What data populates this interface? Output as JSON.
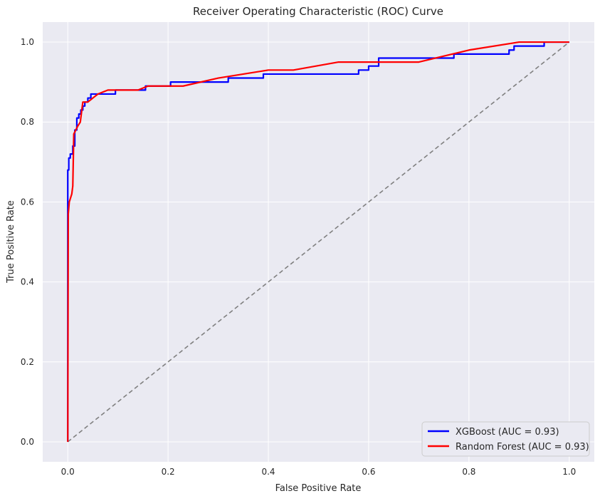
{
  "chart_data": {
    "type": "line",
    "title": "Receiver Operating Characteristic (ROC) Curve",
    "xlabel": "False Positive Rate",
    "ylabel": "True Positive Rate",
    "xlim": [
      -0.05,
      1.05
    ],
    "ylim": [
      -0.05,
      1.05
    ],
    "xticks": [
      "0.0",
      "0.2",
      "0.4",
      "0.6",
      "0.8",
      "1.0"
    ],
    "yticks": [
      "0.0",
      "0.2",
      "0.4",
      "0.6",
      "0.8",
      "1.0"
    ],
    "grid": true,
    "legend_position": "lower-right",
    "colors": {
      "background": "#eaeaf2",
      "grid": "#ffffff",
      "xgboost": "#0000ff",
      "random_forest": "#ff0000",
      "diagonal": "#808080"
    },
    "series": [
      {
        "name": "XGBoost (AUC = 0.93)",
        "color": "#0000ff",
        "style": "solid",
        "x": [
          0,
          0,
          0.002,
          0.002,
          0.005,
          0.005,
          0.01,
          0.01,
          0.014,
          0.014,
          0.018,
          0.018,
          0.022,
          0.022,
          0.026,
          0.026,
          0.03,
          0.03,
          0.034,
          0.034,
          0.04,
          0.04,
          0.046,
          0.046,
          0.052,
          0.052,
          0.095,
          0.095,
          0.155,
          0.155,
          0.205,
          0.205,
          0.32,
          0.32,
          0.39,
          0.39,
          0.58,
          0.58,
          0.6,
          0.6,
          0.62,
          0.62,
          0.77,
          0.77,
          0.88,
          0.88,
          0.89,
          0.89,
          0.95,
          0.95,
          1.0
        ],
        "y": [
          0,
          0.68,
          0.68,
          0.71,
          0.71,
          0.72,
          0.72,
          0.74,
          0.74,
          0.78,
          0.78,
          0.81,
          0.81,
          0.82,
          0.82,
          0.83,
          0.83,
          0.84,
          0.84,
          0.85,
          0.85,
          0.86,
          0.86,
          0.87,
          0.87,
          0.87,
          0.87,
          0.88,
          0.88,
          0.89,
          0.89,
          0.9,
          0.9,
          0.91,
          0.91,
          0.92,
          0.92,
          0.93,
          0.93,
          0.94,
          0.94,
          0.96,
          0.96,
          0.97,
          0.97,
          0.98,
          0.98,
          0.99,
          0.99,
          1.0,
          1.0
        ]
      },
      {
        "name": "Random Forest (AUC = 0.93)",
        "color": "#ff0000",
        "style": "solid",
        "x": [
          0,
          0.001,
          0.003,
          0.008,
          0.01,
          0.012,
          0.02,
          0.025,
          0.03,
          0.04,
          0.05,
          0.06,
          0.08,
          0.1,
          0.14,
          0.16,
          0.2,
          0.23,
          0.3,
          0.35,
          0.4,
          0.45,
          0.54,
          0.7,
          0.8,
          0.9,
          1.0
        ],
        "y": [
          0,
          0.57,
          0.6,
          0.62,
          0.64,
          0.77,
          0.79,
          0.8,
          0.85,
          0.85,
          0.86,
          0.87,
          0.88,
          0.88,
          0.88,
          0.89,
          0.89,
          0.89,
          0.91,
          0.92,
          0.93,
          0.93,
          0.95,
          0.95,
          0.98,
          1.0,
          1.0
        ]
      },
      {
        "name": "",
        "color": "#808080",
        "style": "dashed",
        "x": [
          0,
          1
        ],
        "y": [
          0,
          1
        ]
      }
    ]
  }
}
